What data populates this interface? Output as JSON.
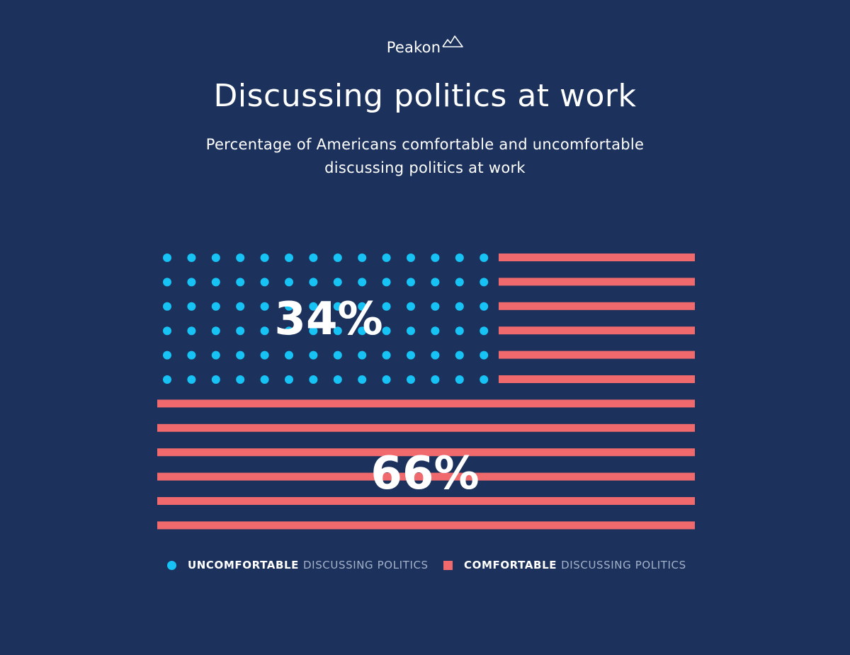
{
  "brand": {
    "name": "Peakon"
  },
  "header": {
    "title": "Discussing politics at work",
    "subtitle": "Percentage of Americans comfortable and uncomfortable discussing politics at work"
  },
  "colors": {
    "background": "#1c325c",
    "uncomfortable": "#17c2f5",
    "comfortable": "#f0696c",
    "text": "#ffffff",
    "muted": "#a3b1c9"
  },
  "chart_data": {
    "type": "pictograph",
    "series": [
      {
        "name": "UNCOMFORTABLE DISCUSSING POLITICS",
        "value": 34,
        "label": "34%",
        "marker": "dot"
      },
      {
        "name": "COMFORTABLE DISCUSSING POLITICS",
        "value": 66,
        "label": "66%",
        "marker": "stripe"
      }
    ],
    "legend": {
      "position": "bottom",
      "items": [
        {
          "strong": "UNCOMFORTABLE",
          "rest": "DISCUSSING POLITICS"
        },
        {
          "strong": "COMFORTABLE",
          "rest": "DISCUSSING POLITICS"
        }
      ]
    },
    "grid": false
  }
}
